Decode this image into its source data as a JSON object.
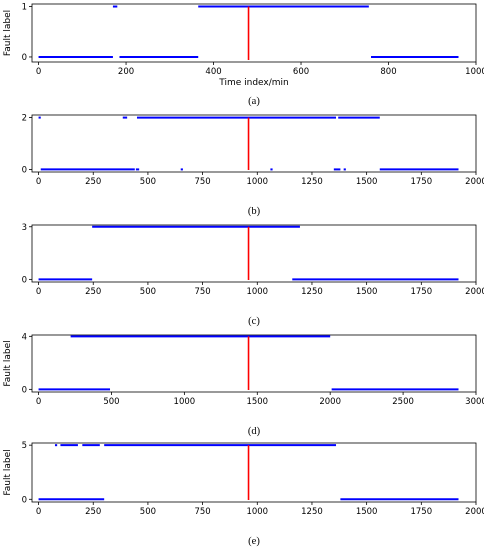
{
  "chart_data": [
    {
      "type": "scatter",
      "panel_label": "(a)",
      "xlabel": "Time index/min",
      "ylabel": "Fault label",
      "xlim": [
        -15,
        1000
      ],
      "ylim": [
        -0.1,
        1.05
      ],
      "xticks": [
        0,
        200,
        400,
        600,
        800,
        1000
      ],
      "yticks": [
        0,
        1
      ],
      "colors": {
        "points": "#0000ff",
        "fault_line": "#ff0000"
      },
      "fault_onset": 480,
      "fault_level": 1,
      "segments": [
        {
          "label": 0,
          "x_start": 0,
          "x_end": 170
        },
        {
          "label": 1,
          "x_start": 170,
          "x_end": 180
        },
        {
          "label": 0,
          "x_start": 185,
          "x_end": 365
        },
        {
          "label": 1,
          "x_start": 365,
          "x_end": 755
        },
        {
          "label": 0,
          "x_start": 760,
          "x_end": 960
        }
      ]
    },
    {
      "type": "scatter",
      "panel_label": "(b)",
      "xlabel": "",
      "ylabel": "",
      "xlim": [
        -30,
        2000
      ],
      "ylim": [
        -0.1,
        2.1
      ],
      "xticks": [
        0,
        250,
        500,
        750,
        1000,
        1250,
        1500,
        1750,
        2000
      ],
      "yticks": [
        0,
        2
      ],
      "colors": {
        "points": "#0000ff",
        "fault_line": "#ff0000"
      },
      "fault_onset": 960,
      "fault_level": 2,
      "segments": [
        {
          "label": 2,
          "x_start": 0,
          "x_end": 10
        },
        {
          "label": 0,
          "x_start": 10,
          "x_end": 440
        },
        {
          "label": 2,
          "x_start": 385,
          "x_end": 405
        },
        {
          "label": 2,
          "x_start": 450,
          "x_end": 1360
        },
        {
          "label": 0,
          "x_start": 445,
          "x_end": 460
        },
        {
          "label": 0,
          "x_start": 650,
          "x_end": 660
        },
        {
          "label": 0,
          "x_start": 1060,
          "x_end": 1070
        },
        {
          "label": 2,
          "x_start": 1370,
          "x_end": 1560
        },
        {
          "label": 0,
          "x_start": 1350,
          "x_end": 1380
        },
        {
          "label": 0,
          "x_start": 1395,
          "x_end": 1405
        },
        {
          "label": 0,
          "x_start": 1560,
          "x_end": 1920
        }
      ]
    },
    {
      "type": "scatter",
      "panel_label": "(c)",
      "xlabel": "",
      "ylabel": "",
      "xlim": [
        -30,
        2000
      ],
      "ylim": [
        -0.15,
        3.1
      ],
      "xticks": [
        0,
        250,
        500,
        750,
        1000,
        1250,
        1500,
        1750,
        2000
      ],
      "yticks": [
        0,
        3
      ],
      "colors": {
        "points": "#0000ff",
        "fault_line": "#ff0000"
      },
      "fault_onset": 960,
      "fault_level": 3,
      "segments": [
        {
          "label": 0,
          "x_start": 0,
          "x_end": 245
        },
        {
          "label": 3,
          "x_start": 245,
          "x_end": 1195
        },
        {
          "label": 0,
          "x_start": 1160,
          "x_end": 1920
        }
      ]
    },
    {
      "type": "scatter",
      "panel_label": "(d)",
      "xlabel": "",
      "ylabel": "Fault label",
      "xlim": [
        -45,
        3000
      ],
      "ylim": [
        -0.2,
        4.1
      ],
      "xticks": [
        0,
        500,
        1000,
        1500,
        2000,
        2500,
        3000
      ],
      "yticks": [
        0,
        4
      ],
      "colors": {
        "points": "#0000ff",
        "fault_line": "#ff0000"
      },
      "fault_onset": 1440,
      "fault_level": 4,
      "segments": [
        {
          "label": 0,
          "x_start": 0,
          "x_end": 490
        },
        {
          "label": 4,
          "x_start": 220,
          "x_end": 2000
        },
        {
          "label": 0,
          "x_start": 2010,
          "x_end": 2880
        }
      ]
    },
    {
      "type": "scatter",
      "panel_label": "(e)",
      "xlabel": "",
      "ylabel": "Fault label",
      "xlim": [
        -30,
        2000
      ],
      "ylim": [
        -0.25,
        5.2
      ],
      "xticks": [
        0,
        250,
        500,
        750,
        1000,
        1250,
        1500,
        1750,
        2000
      ],
      "yticks": [
        0,
        5
      ],
      "colors": {
        "points": "#0000ff",
        "fault_line": "#ff0000"
      },
      "fault_onset": 960,
      "fault_level": 5,
      "segments": [
        {
          "label": 0,
          "x_start": 0,
          "x_end": 300
        },
        {
          "label": 5,
          "x_start": 75,
          "x_end": 85
        },
        {
          "label": 5,
          "x_start": 100,
          "x_end": 180
        },
        {
          "label": 5,
          "x_start": 200,
          "x_end": 280
        },
        {
          "label": 5,
          "x_start": 300,
          "x_end": 1360
        },
        {
          "label": 0,
          "x_start": 1380,
          "x_end": 1920
        }
      ]
    }
  ]
}
